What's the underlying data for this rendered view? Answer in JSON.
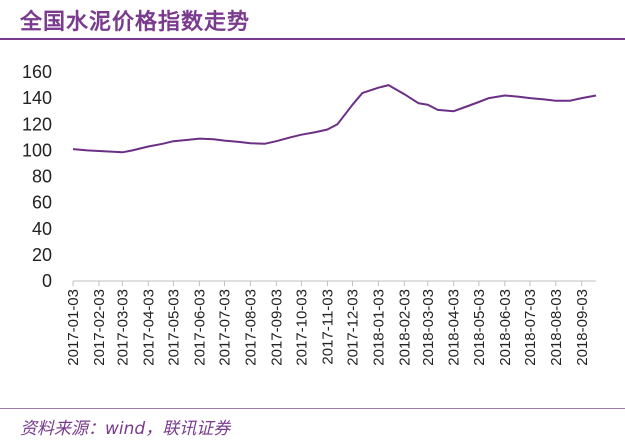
{
  "title": "全国水泥价格指数走势",
  "source_note": "资料来源：wind，联讯证券",
  "watermark": "",
  "colors": {
    "accent": "#7a3b8f",
    "line": "#6b2f86",
    "axis": "#bfbfbf",
    "text": "#222222"
  },
  "chart_data": {
    "type": "line",
    "title": "全国水泥价格指数走势",
    "xlabel": "",
    "ylabel": "",
    "ylim": [
      0,
      160
    ],
    "y_ticks": [
      0,
      20,
      40,
      60,
      80,
      100,
      120,
      140,
      160
    ],
    "grid": false,
    "legend": "none",
    "x_ticks": [
      "2017-01-03",
      "2017-02-03",
      "2017-03-03",
      "2017-04-03",
      "2017-05-03",
      "2017-06-03",
      "2017-07-03",
      "2017-08-03",
      "2017-09-03",
      "2017-10-03",
      "2017-11-03",
      "2017-12-03",
      "2018-01-03",
      "2018-02-03",
      "2018-03-03",
      "2018-04-03",
      "2018-05-03",
      "2018-06-03",
      "2018-07-03",
      "2018-08-03",
      "2018-09-03"
    ],
    "series": [
      {
        "name": "",
        "x": [
          "2017-01-03",
          "2017-01-20",
          "2017-02-03",
          "2017-02-20",
          "2017-03-03",
          "2017-03-15",
          "2017-04-03",
          "2017-04-20",
          "2017-05-03",
          "2017-05-20",
          "2017-06-03",
          "2017-06-20",
          "2017-07-03",
          "2017-07-20",
          "2017-08-03",
          "2017-08-20",
          "2017-09-03",
          "2017-09-20",
          "2017-10-03",
          "2017-10-20",
          "2017-11-03",
          "2017-11-15",
          "2017-12-03",
          "2017-12-15",
          "2018-01-03",
          "2018-01-15",
          "2018-02-03",
          "2018-02-20",
          "2018-03-03",
          "2018-03-15",
          "2018-04-03",
          "2018-04-20",
          "2018-05-03",
          "2018-05-15",
          "2018-06-03",
          "2018-06-20",
          "2018-07-03",
          "2018-07-20",
          "2018-08-03",
          "2018-08-20",
          "2018-09-03",
          "2018-09-20"
        ],
        "y": [
          101,
          100,
          99.5,
          99,
          98.5,
          100,
          103,
          105,
          107,
          108,
          109,
          108.5,
          107.5,
          106.5,
          105.5,
          105,
          107,
          110,
          112,
          114,
          116,
          120,
          135,
          144,
          148,
          150,
          143,
          136,
          135,
          131,
          130,
          134,
          137,
          140,
          142,
          141,
          140,
          139,
          138,
          138,
          140,
          142
        ]
      }
    ]
  }
}
